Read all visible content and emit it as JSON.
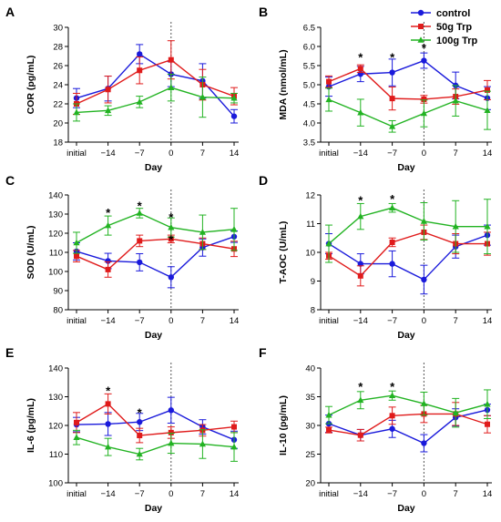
{
  "legend": [
    {
      "name": "control",
      "color": "#1a1adb"
    },
    {
      "name": "50g Trp",
      "color": "#e01b1b"
    },
    {
      "name": "100g Trp",
      "color": "#22b322"
    }
  ],
  "chart_data": [
    {
      "type": "line",
      "panel": "A",
      "ylabel": "COR (pg/mL)",
      "xlabel": "Day",
      "categories": [
        "initial",
        "−14",
        "−7",
        "0",
        "7",
        "14"
      ],
      "ylim": [
        18,
        30
      ],
      "yticks": [
        18,
        20,
        22,
        24,
        26,
        28,
        30
      ],
      "series": [
        {
          "name": "control",
          "values": [
            22.6,
            23.6,
            27.2,
            25.1,
            24.4,
            20.7
          ],
          "err": [
            1.0,
            1.3,
            1.0,
            1.3,
            1.8,
            0.7
          ]
        },
        {
          "name": "50g Trp",
          "values": [
            22.0,
            23.5,
            25.5,
            26.6,
            24.0,
            22.8
          ],
          "err": [
            1.1,
            1.4,
            1.4,
            2.0,
            1.6,
            0.9
          ]
        },
        {
          "name": "100g Trp",
          "values": [
            21.1,
            21.3,
            22.2,
            23.7,
            22.7,
            22.6
          ],
          "err": [
            0.9,
            0.5,
            0.6,
            1.4,
            2.1,
            0.5
          ]
        }
      ],
      "annotations": []
    },
    {
      "type": "line",
      "panel": "B",
      "ylabel": "MDA (nmol/mL)",
      "xlabel": "Day",
      "categories": [
        "initial",
        "−14",
        "−7",
        "0",
        "7",
        "14"
      ],
      "ylim": [
        3.5,
        6.5
      ],
      "yticks": [
        3.5,
        4.0,
        4.5,
        5.0,
        5.5,
        6.0,
        6.5
      ],
      "series": [
        {
          "name": "control",
          "values": [
            4.95,
            5.28,
            5.32,
            5.63,
            4.98,
            4.65
          ],
          "err": [
            0.25,
            0.2,
            0.35,
            0.2,
            0.35,
            0.3
          ]
        },
        {
          "name": "50g Trp",
          "values": [
            5.08,
            5.42,
            4.64,
            4.62,
            4.69,
            4.86
          ],
          "err": [
            0.15,
            0.1,
            0.3,
            0.1,
            0.2,
            0.25
          ]
        },
        {
          "name": "100g Trp",
          "values": [
            4.61,
            4.27,
            3.91,
            4.25,
            4.58,
            4.33
          ],
          "err": [
            0.3,
            0.35,
            0.15,
            0.35,
            0.4,
            0.5
          ]
        }
      ],
      "annotations": [
        {
          "text": "*",
          "x": "−14",
          "y": 5.75
        },
        {
          "text": "*",
          "x": "−7",
          "y": 5.75
        },
        {
          "text": "*",
          "x": "0",
          "y": 6.0
        }
      ]
    },
    {
      "type": "line",
      "panel": "C",
      "ylabel": "SOD (U/mL)",
      "xlabel": "Day",
      "categories": [
        "initial",
        "−14",
        "−7",
        "0",
        "7",
        "14"
      ],
      "ylim": [
        80,
        140
      ],
      "yticks": [
        80,
        90,
        100,
        110,
        120,
        130,
        140
      ],
      "series": [
        {
          "name": "control",
          "values": [
            110.5,
            105.5,
            104.8,
            97.0,
            112.5,
            118.2
          ],
          "err": [
            4.5,
            4.0,
            4.5,
            5.5,
            4.5,
            3.0
          ]
        },
        {
          "name": "50g Trp",
          "values": [
            108.0,
            101.0,
            116.0,
            117.0,
            114.5,
            111.8
          ],
          "err": [
            3.0,
            4.0,
            3.0,
            2.0,
            3.0,
            4.0
          ]
        },
        {
          "name": "100g Trp",
          "values": [
            115.0,
            124.0,
            130.5,
            123.0,
            120.5,
            122.0
          ],
          "err": [
            5.5,
            5.0,
            2.5,
            5.0,
            9.0,
            11.0
          ]
        }
      ],
      "annotations": [
        {
          "text": "*",
          "x": "−14",
          "y": 131.5
        },
        {
          "text": "*",
          "x": "−7",
          "y": 135.0
        },
        {
          "text": "*",
          "x": "0",
          "y": 129.0
        },
        {
          "text": "*",
          "x": "0",
          "y": 117.5
        }
      ]
    },
    {
      "type": "line",
      "panel": "D",
      "ylabel": "T-AOC (U/mL)",
      "xlabel": "Day",
      "categories": [
        "initial",
        "−14",
        "−7",
        "0",
        "7",
        "14"
      ],
      "ylim": [
        8,
        12
      ],
      "yticks": [
        8,
        9,
        10,
        11,
        12
      ],
      "series": [
        {
          "name": "control",
          "values": [
            10.3,
            9.6,
            9.6,
            9.05,
            10.2,
            10.6
          ],
          "err": [
            0.35,
            0.35,
            0.45,
            0.5,
            0.4,
            0.35
          ]
        },
        {
          "name": "50g Trp",
          "values": [
            9.88,
            9.18,
            10.35,
            10.7,
            10.3,
            10.3
          ],
          "err": [
            0.12,
            0.35,
            0.15,
            0.25,
            0.35,
            0.4
          ]
        },
        {
          "name": "100g Trp",
          "values": [
            10.3,
            11.25,
            11.55,
            11.08,
            10.9,
            10.9
          ],
          "err": [
            0.65,
            0.45,
            0.15,
            0.65,
            0.9,
            0.95
          ]
        }
      ],
      "annotations": [
        {
          "text": "*",
          "x": "−14",
          "y": 11.85
        },
        {
          "text": "*",
          "x": "−7",
          "y": 11.9
        }
      ]
    },
    {
      "type": "line",
      "panel": "E",
      "ylabel": "IL-6 (pg/mL)",
      "xlabel": "Day",
      "categories": [
        "initial",
        "−14",
        "−7",
        "0",
        "7",
        "14"
      ],
      "ylim": [
        100,
        140
      ],
      "yticks": [
        100,
        110,
        120,
        130,
        140
      ],
      "series": [
        {
          "name": "control",
          "values": [
            120.3,
            120.5,
            121.2,
            125.3,
            119.5,
            115.0
          ],
          "err": [
            2.5,
            4.0,
            3.0,
            4.5,
            2.5,
            3.0
          ]
        },
        {
          "name": "50g Trp",
          "values": [
            121.0,
            127.5,
            116.5,
            117.5,
            118.3,
            119.5
          ],
          "err": [
            3.5,
            3.5,
            2.5,
            2.0,
            2.0,
            2.0
          ]
        },
        {
          "name": "100g Trp",
          "values": [
            115.8,
            112.5,
            110.0,
            113.8,
            113.5,
            112.5
          ],
          "err": [
            2.5,
            3.0,
            2.0,
            3.5,
            5.0,
            5.0
          ]
        }
      ],
      "annotations": [
        {
          "text": "*",
          "x": "−14",
          "y": 132.5
        },
        {
          "text": "*",
          "x": "−7",
          "y": 125.0
        }
      ]
    },
    {
      "type": "line",
      "panel": "F",
      "ylabel": "IL-10 (pg/mL)",
      "xlabel": "Day",
      "categories": [
        "initial",
        "−14",
        "−7",
        "0",
        "7",
        "14"
      ],
      "ylim": [
        20,
        40
      ],
      "yticks": [
        20,
        25,
        30,
        35,
        40
      ],
      "series": [
        {
          "name": "control",
          "values": [
            30.3,
            28.3,
            29.4,
            26.9,
            31.4,
            32.7
          ],
          "err": [
            1.5,
            1.0,
            1.5,
            1.5,
            1.5,
            1.0
          ]
        },
        {
          "name": "50g Trp",
          "values": [
            29.2,
            28.3,
            31.7,
            32.0,
            32.0,
            30.2
          ],
          "err": [
            0.5,
            1.0,
            1.5,
            1.5,
            2.0,
            1.5
          ]
        },
        {
          "name": "100g Trp",
          "values": [
            31.8,
            34.4,
            35.2,
            33.8,
            32.2,
            33.7
          ],
          "err": [
            1.5,
            1.5,
            0.8,
            2.0,
            2.5,
            2.5
          ]
        }
      ],
      "annotations": [
        {
          "text": "*",
          "x": "−14",
          "y": 37.0
        },
        {
          "text": "*",
          "x": "−7",
          "y": 37.0
        }
      ]
    }
  ]
}
